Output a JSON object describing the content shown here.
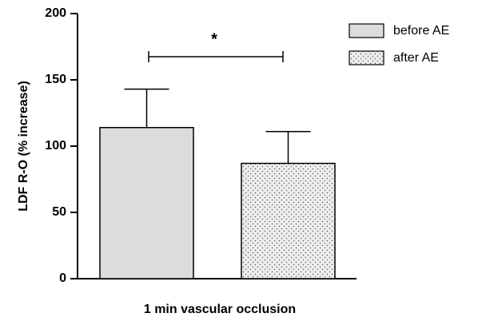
{
  "chart_data": {
    "type": "bar",
    "ylabel": "LDF R-O (% increase)",
    "xlabel": "1 min vascular occlusion",
    "annotation": "*",
    "series": [
      {
        "name": "before AE",
        "color": "#dcdcdc",
        "values": [
          114
        ],
        "errors": [
          29
        ]
      },
      {
        "name": "after AE",
        "color": "#ededed",
        "pattern": "dots",
        "values": [
          87
        ],
        "errors": [
          24
        ]
      }
    ],
    "ylim": [
      0,
      200
    ],
    "yticks": [
      0,
      50,
      100,
      150,
      200
    ],
    "grid": false,
    "legend": "top-right"
  }
}
